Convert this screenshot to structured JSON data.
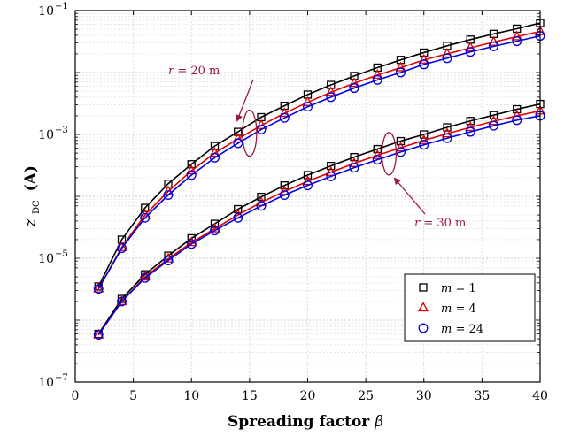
{
  "chart_data": {
    "type": "line",
    "xlabel": "Spreading factor",
    "xlabel_symbol": "β",
    "ylabel_main": "z",
    "ylabel_sub": "DC",
    "ylabel_unit": "(A)",
    "xlim": [
      0,
      40
    ],
    "ylim": [
      1e-07,
      0.1
    ],
    "yscale": "log",
    "x_ticks": [
      0,
      5,
      10,
      15,
      20,
      25,
      30,
      35,
      40
    ],
    "y_ticks": [
      {
        "value": 1e-07,
        "base": "10",
        "exp": "−7"
      },
      {
        "value": 1e-05,
        "base": "10",
        "exp": "−5"
      },
      {
        "value": 0.001,
        "base": "10",
        "exp": "−3"
      },
      {
        "value": 0.1,
        "base": "10",
        "exp": "−1"
      }
    ],
    "grid": true,
    "legend_position": "bottom-right",
    "x": [
      2,
      4,
      6,
      8,
      10,
      12,
      14,
      16,
      18,
      20,
      22,
      24,
      26,
      28,
      30,
      32,
      34,
      36,
      38,
      40
    ],
    "groups": [
      {
        "label_var": "r",
        "label_value": "= 20 m",
        "series": [
          {
            "name": "m = 1",
            "values": [
              3.5e-06,
              2e-05,
              6.5e-05,
              0.00016,
              0.00033,
              0.00065,
              0.0011,
              0.0019,
              0.0029,
              0.0044,
              0.0063,
              0.0088,
              0.012,
              0.016,
              0.021,
              0.027,
              0.034,
              0.042,
              0.051,
              0.063
            ]
          },
          {
            "name": "m = 4",
            "values": [
              3.2e-06,
              1.5e-05,
              5e-05,
              0.00012,
              0.00026,
              0.0005,
              0.00085,
              0.0014,
              0.0022,
              0.0033,
              0.0048,
              0.0067,
              0.0091,
              0.012,
              0.016,
              0.02,
              0.025,
              0.031,
              0.038,
              0.046
            ]
          },
          {
            "name": "m = 24",
            "values": [
              3.2e-06,
              1.45e-05,
              4.5e-05,
              0.000105,
              0.00022,
              0.00042,
              0.00072,
              0.0012,
              0.00185,
              0.0028,
              0.004,
              0.0056,
              0.0076,
              0.01,
              0.0135,
              0.017,
              0.0215,
              0.0265,
              0.032,
              0.039
            ]
          }
        ]
      },
      {
        "label_var": "r",
        "label_value": "= 30 m",
        "series": [
          {
            "name": "m = 1",
            "values": [
              6e-07,
              2.2e-06,
              5.5e-06,
              1.1e-05,
              2.1e-05,
              3.6e-05,
              6.2e-05,
              9.8e-05,
              0.00015,
              0.00022,
              0.00031,
              0.00043,
              0.00058,
              0.00078,
              0.001,
              0.0013,
              0.00165,
              0.00205,
              0.00255,
              0.0031
            ]
          },
          {
            "name": "m = 4",
            "values": [
              5.8e-07,
              2e-06,
              5e-06,
              9.8e-06,
              1.8e-05,
              3e-05,
              5e-05,
              8e-05,
              0.00012,
              0.000175,
              0.000245,
              0.00034,
              0.00046,
              0.00061,
              0.0008,
              0.00103,
              0.0013,
              0.00163,
              0.002,
              0.0024
            ]
          },
          {
            "name": "m = 24",
            "values": [
              5.8e-07,
              2e-06,
              4.8e-06,
              9.2e-06,
              1.7e-05,
              2.8e-05,
              4.5e-05,
              7e-05,
              0.000105,
              0.00015,
              0.00021,
              0.00029,
              0.00039,
              0.00052,
              0.00068,
              0.00087,
              0.0011,
              0.00138,
              0.0017,
              0.002
            ]
          }
        ]
      }
    ],
    "legend": [
      {
        "var": "m",
        "value": "= 1",
        "color": "#000000",
        "marker": "square"
      },
      {
        "var": "m",
        "value": "= 4",
        "color": "#e00000",
        "marker": "triangle"
      },
      {
        "var": "m",
        "value": "= 24",
        "color": "#0000e0",
        "marker": "circle"
      }
    ],
    "annotation_color": "#9a1b3c"
  }
}
